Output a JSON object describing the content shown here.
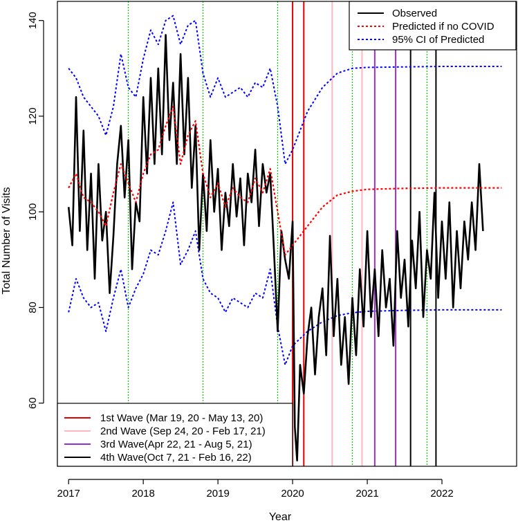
{
  "chart_data": {
    "type": "line",
    "title": "",
    "xlabel": "Year",
    "ylabel": "Total Number of Visits",
    "xlim": [
      2016.85,
      2023.0
    ],
    "ylim": [
      46.8,
      144
    ],
    "x_ticks": [
      2017,
      2018,
      2019,
      2020,
      2021,
      2022
    ],
    "x_tick_labels": [
      "2017",
      "2018",
      "2019",
      "2020",
      "2021",
      "2022"
    ],
    "y_ticks": [
      60,
      80,
      100,
      120,
      140
    ],
    "y_tick_labels": [
      "60",
      "80",
      "100",
      "120",
      "140"
    ],
    "legend_top": {
      "position": "top-right",
      "entries": [
        {
          "label": "Observed",
          "color": "#000000",
          "style": "solid"
        },
        {
          "label": "Predicted if no COVID",
          "color": "#ff0000",
          "style": "dotted"
        },
        {
          "label": "95% CI of Predicted",
          "color": "#0000ff",
          "style": "dotted"
        }
      ]
    },
    "legend_waves": {
      "position": "bottom-left",
      "entries": [
        {
          "label": "1st Wave (Mar 19, 20 - May 13, 20)",
          "color": "#e00000"
        },
        {
          "label": "2nd Wave (Sep 24, 20 - Feb 17, 21)",
          "color": "#ffb6c1"
        },
        {
          "label": "3rd Wave(Apr 22, 21 - Aug 5, 21)",
          "color": "#9b30c9"
        },
        {
          "label": "4th Wave(Oct 7, 21 - Feb 16, 22)",
          "color": "#000000"
        }
      ]
    },
    "green_reference_lines": [
      2017.8,
      2018.8,
      2019.8,
      2020.8,
      2021.8
    ],
    "wave_lines": [
      {
        "wave": "1st",
        "color": "#e00000",
        "x": [
          2020.0,
          2020.15
        ]
      },
      {
        "wave": "2nd",
        "color": "#ffb6c1",
        "x": [
          2020.53,
          2020.93
        ]
      },
      {
        "wave": "3rd",
        "color": "#9b30c9",
        "x": [
          2021.1,
          2021.38
        ]
      },
      {
        "wave": "4th",
        "color": "#000000",
        "x": [
          2021.58,
          2021.92
        ]
      }
    ],
    "series": [
      {
        "name": "Observed",
        "color": "#000000",
        "x": [
          2017.0,
          2017.05,
          2017.1,
          2017.15,
          2017.2,
          2017.25,
          2017.3,
          2017.35,
          2017.4,
          2017.45,
          2017.5,
          2017.55,
          2017.6,
          2017.65,
          2017.7,
          2017.75,
          2017.8,
          2017.85,
          2017.9,
          2017.95,
          2018.0,
          2018.05,
          2018.1,
          2018.15,
          2018.2,
          2018.25,
          2018.3,
          2018.35,
          2018.4,
          2018.45,
          2018.5,
          2018.55,
          2018.6,
          2018.65,
          2018.7,
          2018.75,
          2018.8,
          2018.85,
          2018.9,
          2018.95,
          2019.0,
          2019.05,
          2019.1,
          2019.15,
          2019.2,
          2019.25,
          2019.3,
          2019.35,
          2019.4,
          2019.45,
          2019.5,
          2019.55,
          2019.6,
          2019.65,
          2019.7,
          2019.75,
          2019.8,
          2019.85,
          2019.9,
          2019.95,
          2020.0,
          2020.03,
          2020.06,
          2020.1,
          2020.15,
          2020.2,
          2020.25,
          2020.3,
          2020.35,
          2020.4,
          2020.45,
          2020.5,
          2020.55,
          2020.6,
          2020.65,
          2020.7,
          2020.75,
          2020.8,
          2020.85,
          2020.9,
          2020.95,
          2021.0,
          2021.05,
          2021.1,
          2021.15,
          2021.2,
          2021.25,
          2021.3,
          2021.35,
          2021.4,
          2021.45,
          2021.5,
          2021.55,
          2021.6,
          2021.65,
          2021.7,
          2021.75,
          2021.8,
          2021.85,
          2021.9,
          2021.95,
          2022.0,
          2022.05,
          2022.1,
          2022.15,
          2022.2,
          2022.25,
          2022.3,
          2022.35,
          2022.4,
          2022.45,
          2022.5,
          2022.55
        ],
        "values": [
          101,
          93,
          124,
          96,
          117,
          92,
          108,
          86,
          110,
          94,
          100,
          83,
          95,
          110,
          118,
          103,
          115,
          88,
          102,
          98,
          124,
          108,
          128,
          110,
          130,
          112,
          137,
          115,
          127,
          110,
          133,
          112,
          128,
          105,
          118,
          92,
          108,
          96,
          115,
          100,
          109,
          92,
          104,
          97,
          110,
          99,
          107,
          93,
          108,
          102,
          113,
          97,
          110,
          104,
          108,
          92,
          75,
          96,
          90,
          86,
          98,
          55,
          48,
          68,
          62,
          74,
          80,
          66,
          78,
          84,
          70,
          95,
          74,
          86,
          68,
          78,
          64,
          82,
          70,
          88,
          76,
          96,
          78,
          88,
          74,
          92,
          80,
          86,
          72,
          96,
          82,
          90,
          76,
          94,
          84,
          100,
          78,
          92,
          86,
          104,
          82,
          98,
          86,
          102,
          80,
          96,
          84,
          98,
          90,
          102,
          92,
          110,
          96
        ]
      },
      {
        "name": "Predicted if no COVID",
        "color": "#ff0000",
        "x": [
          2017.0,
          2017.1,
          2017.2,
          2017.3,
          2017.4,
          2017.5,
          2017.6,
          2017.7,
          2017.8,
          2017.9,
          2018.0,
          2018.1,
          2018.2,
          2018.3,
          2018.4,
          2018.5,
          2018.6,
          2018.7,
          2018.8,
          2018.9,
          2019.0,
          2019.1,
          2019.2,
          2019.3,
          2019.4,
          2019.5,
          2019.6,
          2019.7,
          2019.8,
          2019.9,
          2020.0,
          2020.2,
          2020.4,
          2020.6,
          2020.8,
          2021.0,
          2021.5,
          2022.0,
          2022.5,
          2022.8
        ],
        "values": [
          105,
          108,
          103,
          102,
          100,
          97,
          104,
          110,
          106,
          102,
          108,
          112,
          113,
          118,
          122,
          110,
          116,
          119,
          108,
          103,
          106,
          101,
          105,
          103,
          102,
          107,
          104,
          109,
          100,
          91,
          93,
          97,
          101,
          103.5,
          104.3,
          104.7,
          104.9,
          105,
          105,
          105
        ]
      },
      {
        "name": "95% CI of Predicted (upper)",
        "color": "#0000ff",
        "x": [
          2017.0,
          2017.1,
          2017.2,
          2017.3,
          2017.4,
          2017.5,
          2017.6,
          2017.7,
          2017.8,
          2017.9,
          2018.0,
          2018.1,
          2018.2,
          2018.3,
          2018.4,
          2018.5,
          2018.6,
          2018.7,
          2018.8,
          2018.9,
          2019.0,
          2019.1,
          2019.2,
          2019.3,
          2019.4,
          2019.5,
          2019.6,
          2019.7,
          2019.8,
          2019.9,
          2020.0,
          2020.2,
          2020.4,
          2020.6,
          2020.8,
          2021.0,
          2021.5,
          2022.0,
          2022.5,
          2022.8
        ],
        "values": [
          130,
          128,
          124,
          122,
          120,
          116,
          122,
          133,
          126,
          124,
          132,
          138,
          135,
          140,
          141,
          135,
          139,
          140,
          129,
          124,
          128,
          124,
          125,
          126,
          124,
          127,
          126,
          130,
          122,
          110,
          113,
          121,
          126,
          129,
          130,
          130.2,
          130.3,
          130.4,
          130.4,
          130.4
        ]
      },
      {
        "name": "95% CI of Predicted (lower)",
        "color": "#0000ff",
        "x": [
          2017.0,
          2017.1,
          2017.2,
          2017.3,
          2017.4,
          2017.5,
          2017.6,
          2017.7,
          2017.8,
          2017.9,
          2018.0,
          2018.1,
          2018.2,
          2018.3,
          2018.4,
          2018.5,
          2018.6,
          2018.7,
          2018.8,
          2018.9,
          2019.0,
          2019.1,
          2019.2,
          2019.3,
          2019.4,
          2019.5,
          2019.6,
          2019.7,
          2019.8,
          2019.9,
          2020.0,
          2020.2,
          2020.4,
          2020.6,
          2020.8,
          2021.0,
          2021.5,
          2022.0,
          2022.5,
          2022.8
        ],
        "values": [
          79,
          86,
          82,
          80,
          81,
          75,
          82,
          88,
          80,
          84,
          87,
          92,
          91,
          96,
          102,
          89,
          92,
          96,
          86,
          83,
          82,
          79,
          82,
          81,
          80,
          83,
          82,
          88,
          76,
          68,
          72,
          75,
          77,
          78.3,
          78.9,
          79.2,
          79.4,
          79.5,
          79.5,
          79.5
        ]
      }
    ]
  }
}
